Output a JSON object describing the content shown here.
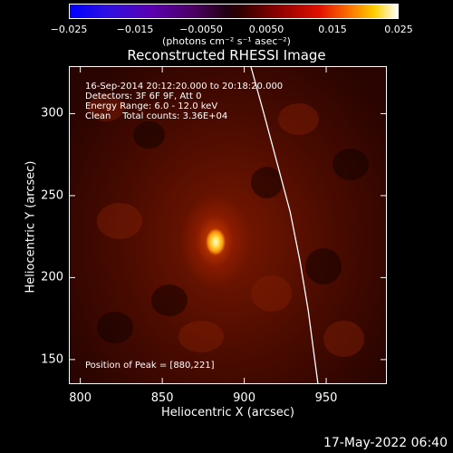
{
  "colorbar": {
    "tick_labels": [
      "−0.025",
      "−0.015",
      "−0.0050",
      "0.0050",
      "0.015",
      "0.025"
    ],
    "range": [
      -0.025,
      0.025
    ]
  },
  "chart_data": {
    "type": "heatmap",
    "title": "Reconstructed RHESSI Image",
    "units_label": "(photons cm⁻² s⁻¹ asec⁻²)",
    "xlabel": "Heliocentric X (arcsec)",
    "ylabel": "Heliocentric Y (arcsec)",
    "xlim": [
      793,
      987
    ],
    "ylim": [
      135,
      329
    ],
    "xticks": [
      800,
      850,
      900,
      950
    ],
    "yticks": [
      150,
      200,
      250,
      300
    ],
    "xtick_labels": [
      "800",
      "850",
      "900",
      "950"
    ],
    "ytick_labels": [
      "150",
      "200",
      "250",
      "300"
    ],
    "peak": {
      "x": 880,
      "y": 221
    },
    "limb_points": [
      [
        904,
        329
      ],
      [
        912,
        300
      ],
      [
        920,
        270
      ],
      [
        928,
        240
      ],
      [
        934,
        210
      ],
      [
        939,
        180
      ],
      [
        943,
        150
      ],
      [
        945,
        135
      ]
    ],
    "annotations": [
      "16-Sep-2014 20:12:20.000 to 20:18:20.000",
      "Detectors: 3F 6F 9F, Att 0",
      "Energy Range: 6.0 - 12.0 keV",
      "Clean    Total counts: 3.36E+04"
    ],
    "peak_label": "Position of Peak = [880,221]"
  },
  "footer": {
    "date": "17-May-2022 06:40"
  }
}
